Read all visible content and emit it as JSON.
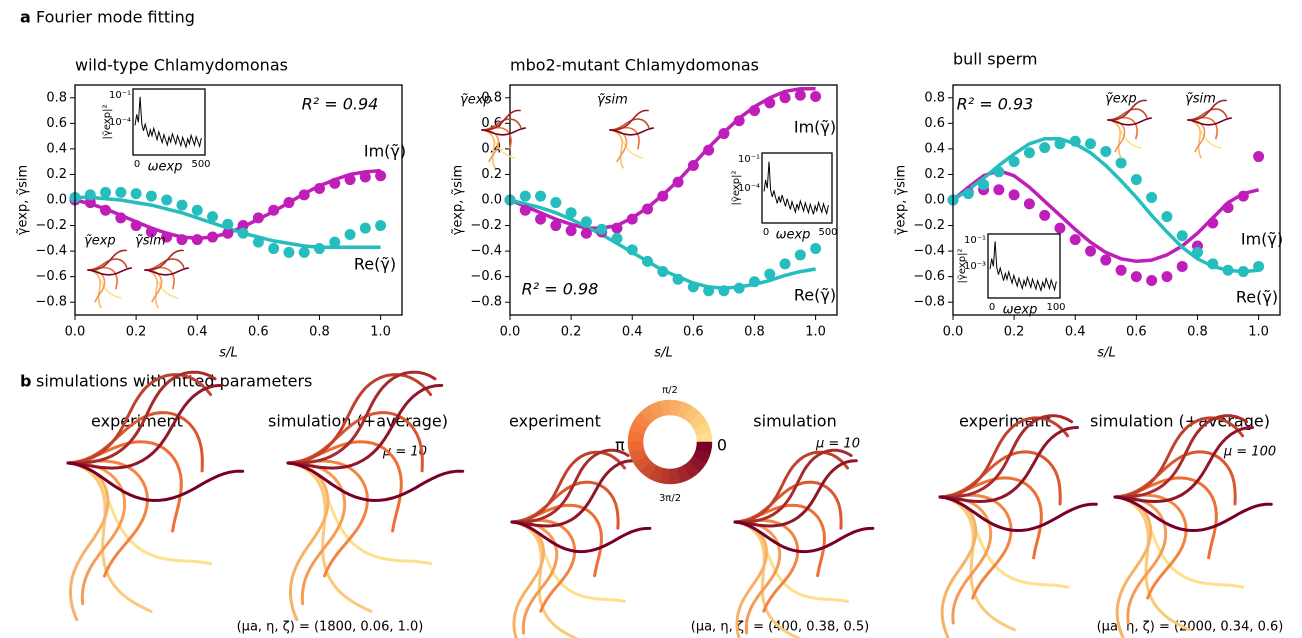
{
  "panels": {
    "a": {
      "label": "a",
      "title": "Fourier mode fitting"
    },
    "b": {
      "label": "b",
      "title": "simulations with fitted parameters"
    }
  },
  "chart_data": [
    {
      "type": "line",
      "title": "wild-type Chlamydomonas",
      "xlabel": "s/L",
      "ylabel": "γ̃exp, γ̃sim",
      "annotation": "R² = 0.94",
      "x": [
        0,
        0.05,
        0.1,
        0.15,
        0.2,
        0.25,
        0.3,
        0.35,
        0.4,
        0.45,
        0.5,
        0.55,
        0.6,
        0.65,
        0.7,
        0.75,
        0.8,
        0.85,
        0.9,
        0.95,
        1
      ],
      "xlim": [
        0,
        1.07
      ],
      "ylim": [
        -0.9,
        0.9
      ],
      "xticks": [
        {
          "value": 0,
          "label": "0.0"
        },
        {
          "value": 0.2,
          "label": "0.2"
        },
        {
          "value": 0.4,
          "label": "0.4"
        },
        {
          "value": 0.6,
          "label": "0.6"
        },
        {
          "value": 0.8,
          "label": "0.8"
        },
        {
          "value": 1,
          "label": "1.0"
        }
      ],
      "yticks": [
        {
          "value": -0.8,
          "label": "−0.8"
        },
        {
          "value": -0.6,
          "label": "−0.6"
        },
        {
          "value": -0.4,
          "label": "−0.4"
        },
        {
          "value": -0.2,
          "label": "−0.2"
        },
        {
          "value": 0,
          "label": "0.0"
        },
        {
          "value": 0.2,
          "label": "0.2"
        },
        {
          "value": 0.4,
          "label": "0.4"
        },
        {
          "value": 0.6,
          "label": "0.6"
        },
        {
          "value": 0.8,
          "label": "0.8"
        }
      ],
      "series": [
        {
          "name": "Im(γ̃)",
          "mode": "line",
          "color": "#bf1fb8",
          "values": [
            0,
            -0.03,
            -0.07,
            -0.12,
            -0.17,
            -0.22,
            -0.26,
            -0.29,
            -0.3,
            -0.29,
            -0.26,
            -0.21,
            -0.15,
            -0.09,
            -0.02,
            0.05,
            0.11,
            0.16,
            0.2,
            0.22,
            0.23
          ]
        },
        {
          "name": "Re(γ̃)",
          "mode": "line",
          "color": "#25bdbd",
          "values": [
            0.02,
            0.02,
            0.01,
            0,
            -0.02,
            -0.04,
            -0.07,
            -0.1,
            -0.14,
            -0.18,
            -0.22,
            -0.26,
            -0.29,
            -0.32,
            -0.34,
            -0.36,
            -0.37,
            -0.37,
            -0.37,
            -0.37,
            -0.37
          ]
        },
        {
          "mode": "markers",
          "color": "#bf1fb8",
          "values": [
            0,
            -0.02,
            -0.08,
            -0.14,
            -0.2,
            -0.25,
            -0.29,
            -0.31,
            -0.31,
            -0.29,
            -0.26,
            -0.2,
            -0.14,
            -0.08,
            -0.02,
            0.04,
            0.09,
            0.13,
            0.16,
            0.18,
            0.19
          ]
        },
        {
          "mode": "markers",
          "color": "#25bdbd",
          "values": [
            0.02,
            0.04,
            0.06,
            0.06,
            0.05,
            0.03,
            0,
            -0.04,
            -0.08,
            -0.13,
            -0.19,
            -0.26,
            -0.33,
            -0.38,
            -0.41,
            -0.41,
            -0.38,
            -0.33,
            -0.27,
            -0.22,
            -0.2
          ]
        }
      ],
      "inset": {
        "ylabel": "|γ̃exp|²",
        "xlabel": "ωexp",
        "tick_labels": [
          "10⁻¹",
          "10⁻⁴",
          "0",
          "500"
        ]
      },
      "thumb_labels": [
        "γ̃exp",
        "γ̃sim"
      ]
    },
    {
      "type": "line",
      "title": "mbo2-mutant Chlamydomonas",
      "xlabel": "s/L",
      "ylabel": "γ̃exp, γ̃sim",
      "annotation": "R² = 0.98",
      "x": [
        0,
        0.05,
        0.1,
        0.15,
        0.2,
        0.25,
        0.3,
        0.35,
        0.4,
        0.45,
        0.5,
        0.55,
        0.6,
        0.65,
        0.7,
        0.75,
        0.8,
        0.85,
        0.9,
        0.95,
        1
      ],
      "xlim": [
        0,
        1.07
      ],
      "ylim": [
        -0.9,
        0.9
      ],
      "xticks": [
        {
          "value": 0,
          "label": "0.0"
        },
        {
          "value": 0.2,
          "label": "0.2"
        },
        {
          "value": 0.4,
          "label": "0.4"
        },
        {
          "value": 0.6,
          "label": "0.6"
        },
        {
          "value": 0.8,
          "label": "0.8"
        },
        {
          "value": 1,
          "label": "1.0"
        }
      ],
      "yticks": [
        {
          "value": -0.8,
          "label": "−0.8"
        },
        {
          "value": -0.6,
          "label": "−0.6"
        },
        {
          "value": -0.4,
          "label": "−0.4"
        },
        {
          "value": -0.2,
          "label": "−0.2"
        },
        {
          "value": 0,
          "label": "0.0"
        },
        {
          "value": 0.2,
          "label": "0.2"
        },
        {
          "value": 0.4,
          "label": "0.4"
        },
        {
          "value": 0.6,
          "label": "0.6"
        },
        {
          "value": 0.8,
          "label": "0.8"
        }
      ],
      "series": [
        {
          "name": "Im(γ̃)",
          "mode": "line",
          "color": "#bf1fb8",
          "values": [
            0,
            -0.05,
            -0.1,
            -0.15,
            -0.19,
            -0.22,
            -0.22,
            -0.2,
            -0.14,
            -0.06,
            0.04,
            0.15,
            0.28,
            0.41,
            0.53,
            0.64,
            0.73,
            0.8,
            0.85,
            0.87,
            0.87
          ]
        },
        {
          "name": "Re(γ̃)",
          "mode": "line",
          "color": "#25bdbd",
          "values": [
            0,
            -0.03,
            -0.06,
            -0.1,
            -0.15,
            -0.21,
            -0.27,
            -0.34,
            -0.41,
            -0.48,
            -0.55,
            -0.6,
            -0.65,
            -0.68,
            -0.69,
            -0.68,
            -0.66,
            -0.63,
            -0.59,
            -0.56,
            -0.54
          ]
        },
        {
          "mode": "markers",
          "color": "#bf1fb8",
          "values": [
            0,
            -0.08,
            -0.15,
            -0.2,
            -0.24,
            -0.26,
            -0.25,
            -0.22,
            -0.15,
            -0.07,
            0.03,
            0.14,
            0.27,
            0.39,
            0.52,
            0.62,
            0.7,
            0.76,
            0.8,
            0.82,
            0.81
          ]
        },
        {
          "mode": "markers",
          "color": "#25bdbd",
          "values": [
            0,
            0.03,
            0.03,
            -0.02,
            -0.1,
            -0.17,
            -0.23,
            -0.3,
            -0.39,
            -0.48,
            -0.56,
            -0.62,
            -0.68,
            -0.71,
            -0.71,
            -0.69,
            -0.64,
            -0.58,
            -0.5,
            -0.43,
            -0.38
          ]
        }
      ],
      "inset": {
        "ylabel": "|γ̃exp|²",
        "xlabel": "ωexp",
        "tick_labels": [
          "10⁻¹",
          "10⁻⁴",
          "0",
          "500"
        ]
      },
      "thumb_labels": [
        "γ̃exp",
        "γ̃sim"
      ]
    },
    {
      "type": "line",
      "title": "bull sperm",
      "xlabel": "s/L",
      "ylabel": "γ̃exp, γ̃sim",
      "annotation": "R² = 0.93",
      "x": [
        0,
        0.05,
        0.1,
        0.15,
        0.2,
        0.25,
        0.3,
        0.35,
        0.4,
        0.45,
        0.5,
        0.55,
        0.6,
        0.65,
        0.7,
        0.75,
        0.8,
        0.85,
        0.9,
        0.95,
        1
      ],
      "xlim": [
        0,
        1.07
      ],
      "ylim": [
        -0.9,
        0.9
      ],
      "xticks": [
        {
          "value": 0,
          "label": "0.0"
        },
        {
          "value": 0.2,
          "label": "0.2"
        },
        {
          "value": 0.4,
          "label": "0.4"
        },
        {
          "value": 0.6,
          "label": "0.6"
        },
        {
          "value": 0.8,
          "label": "0.8"
        },
        {
          "value": 1,
          "label": "1.0"
        }
      ],
      "yticks": [
        {
          "value": -0.8,
          "label": "−0.8"
        },
        {
          "value": -0.6,
          "label": "−0.6"
        },
        {
          "value": -0.4,
          "label": "−0.4"
        },
        {
          "value": -0.2,
          "label": "−0.2"
        },
        {
          "value": 0,
          "label": "0.0"
        },
        {
          "value": 0.2,
          "label": "0.2"
        },
        {
          "value": 0.4,
          "label": "0.4"
        },
        {
          "value": 0.6,
          "label": "0.6"
        },
        {
          "value": 0.8,
          "label": "0.8"
        }
      ],
      "series": [
        {
          "name": "Im(γ̃)",
          "mode": "line",
          "color": "#bf1fb8",
          "values": [
            0,
            0.1,
            0.19,
            0.23,
            0.19,
            0.1,
            -0.01,
            -0.12,
            -0.23,
            -0.33,
            -0.41,
            -0.46,
            -0.48,
            -0.47,
            -0.43,
            -0.36,
            -0.26,
            -0.14,
            -0.02,
            0.05,
            0.08
          ]
        },
        {
          "name": "Re(γ̃)",
          "mode": "line",
          "color": "#25bdbd",
          "values": [
            0,
            0.08,
            0.17,
            0.27,
            0.36,
            0.44,
            0.48,
            0.48,
            0.44,
            0.37,
            0.27,
            0.15,
            0.02,
            -0.12,
            -0.25,
            -0.37,
            -0.46,
            -0.52,
            -0.55,
            -0.56,
            -0.55
          ]
        },
        {
          "mode": "markers",
          "color": "#bf1fb8",
          "values": [
            0,
            0.06,
            0.08,
            0.08,
            0.04,
            -0.03,
            -0.12,
            -0.22,
            -0.31,
            -0.4,
            -0.47,
            -0.55,
            -0.6,
            -0.63,
            -0.6,
            -0.52,
            -0.36,
            -0.18,
            -0.06,
            0.03,
            0.34
          ]
        },
        {
          "mode": "markers",
          "color": "#25bdbd",
          "values": [
            0,
            0.05,
            0.12,
            0.22,
            0.3,
            0.37,
            0.41,
            0.44,
            0.46,
            0.44,
            0.38,
            0.29,
            0.16,
            0.02,
            -0.13,
            -0.28,
            -0.41,
            -0.5,
            -0.55,
            -0.56,
            -0.52
          ]
        }
      ],
      "inset": {
        "ylabel": "|γ̃exp|²",
        "xlabel": "ωexp",
        "tick_labels": [
          "10⁻¹",
          "10⁻³",
          "0",
          "100"
        ]
      },
      "thumb_labels": [
        "γ̃exp",
        "γ̃sim"
      ]
    }
  ],
  "simulations": [
    {
      "experiment_label": "experiment",
      "simulation_label": "simulation (+average)",
      "mu": "μ = 10",
      "params": "(μa, η, ζ) = (1800, 0.06, 1.0)"
    },
    {
      "experiment_label": "experiment",
      "simulation_label": "simulation",
      "mu": "μ = 10",
      "params": "(μa, η, ζ) = (400, 0.38, 0.5)"
    },
    {
      "experiment_label": "experiment",
      "simulation_label": "simulation (+average)",
      "mu": "μ = 100",
      "params": "(μa, η, ζ) = (2000, 0.34, 0.6)"
    }
  ],
  "color_wheel": {
    "labels": [
      "π/2",
      "π",
      "0",
      "3π/2"
    ]
  }
}
